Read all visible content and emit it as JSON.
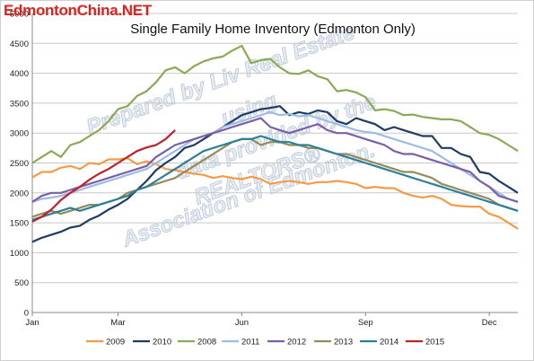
{
  "logo": "EdmontonChina.NET",
  "watermark": {
    "lines": [
      "Prepared by Liv Real Estate",
      "using",
      "data provided by the",
      "REALTORS®",
      "Association of Edmonton."
    ]
  },
  "chart_data": {
    "type": "line",
    "title": "Single Family Home Inventory (Edmonton Only)",
    "xlabel": "",
    "ylabel": "",
    "ylim": [
      0,
      5000
    ],
    "yticks": [
      0,
      500,
      1000,
      1500,
      2000,
      2500,
      3000,
      3500,
      4000,
      4500,
      5000
    ],
    "x_ticks": [
      {
        "week": 0,
        "label": "Jan"
      },
      {
        "week": 9,
        "label": "Mar"
      },
      {
        "week": 22,
        "label": "Jun"
      },
      {
        "week": 35,
        "label": "Sep"
      },
      {
        "week": 48,
        "label": "Dec"
      }
    ],
    "x_range": [
      0,
      51
    ],
    "grid": "horizontal",
    "legend_position": "bottom",
    "series": [
      {
        "name": "2009",
        "color": "#f59b46",
        "values": [
          2260,
          2350,
          2350,
          2420,
          2450,
          2400,
          2500,
          2480,
          2560,
          2560,
          2580,
          2480,
          2530,
          2480,
          2400,
          2380,
          2350,
          2320,
          2300,
          2250,
          2280,
          2250,
          2230,
          2270,
          2230,
          2150,
          2180,
          2200,
          2180,
          2150,
          2180,
          2180,
          2200,
          2180,
          2150,
          2080,
          2100,
          2080,
          2080,
          2000,
          1950,
          1920,
          1950,
          1900,
          1800,
          1780,
          1770,
          1770,
          1650,
          1600,
          1500,
          1400
        ]
      },
      {
        "name": "2010",
        "color": "#1f3b63",
        "values": [
          1180,
          1250,
          1300,
          1350,
          1420,
          1450,
          1550,
          1620,
          1720,
          1800,
          1900,
          2050,
          2200,
          2380,
          2500,
          2600,
          2750,
          2800,
          2900,
          3000,
          3100,
          3200,
          3300,
          3350,
          3400,
          3420,
          3450,
          3300,
          3350,
          3320,
          3380,
          3350,
          3200,
          3150,
          3250,
          3200,
          3150,
          3050,
          3100,
          3050,
          3000,
          2950,
          2950,
          2750,
          2750,
          2650,
          2600,
          2350,
          2320,
          2200,
          2100,
          2000
        ]
      },
      {
        "name": "2008",
        "color": "#8aaa55",
        "values": [
          2500,
          2600,
          2700,
          2600,
          2800,
          2850,
          2950,
          3050,
          3200,
          3400,
          3450,
          3620,
          3700,
          3850,
          4050,
          4100,
          4000,
          4120,
          4200,
          4250,
          4280,
          4380,
          4460,
          4170,
          4220,
          4240,
          4100,
          4000,
          3990,
          4050,
          3950,
          3900,
          3700,
          3720,
          3680,
          3600,
          3380,
          3400,
          3370,
          3300,
          3310,
          3270,
          3250,
          3230,
          3230,
          3200,
          3100,
          3000,
          2970,
          2900,
          2800,
          2700
        ]
      },
      {
        "name": "2011",
        "color": "#9bbde2",
        "values": [
          1850,
          1900,
          1920,
          1950,
          2000,
          2050,
          2100,
          2150,
          2200,
          2250,
          2300,
          2350,
          2400,
          2500,
          2600,
          2700,
          2800,
          2900,
          2950,
          3000,
          3100,
          3150,
          3200,
          3250,
          3300,
          3350,
          3300,
          3320,
          3280,
          3300,
          3250,
          3200,
          3150,
          3100,
          3050,
          3020,
          3000,
          2950,
          2900,
          2850,
          2800,
          2750,
          2700,
          2600,
          2500,
          2400,
          2300,
          2200,
          2100,
          2000,
          1900,
          1850
        ]
      },
      {
        "name": "2012",
        "color": "#7b5ea8",
        "values": [
          1850,
          1950,
          2000,
          2000,
          2050,
          2100,
          2150,
          2200,
          2250,
          2300,
          2350,
          2400,
          2450,
          2600,
          2700,
          2800,
          2850,
          2900,
          2950,
          3000,
          3050,
          3100,
          3150,
          3200,
          3250,
          3100,
          3050,
          3000,
          3050,
          3100,
          3150,
          3050,
          3000,
          3000,
          2950,
          2900,
          2850,
          2800,
          2700,
          2650,
          2650,
          2600,
          2550,
          2500,
          2450,
          2400,
          2350,
          2200,
          2100,
          1950,
          1900,
          1850
        ]
      },
      {
        "name": "2013",
        "color": "#958a58",
        "values": [
          1600,
          1650,
          1700,
          1650,
          1700,
          1750,
          1800,
          1800,
          1850,
          1900,
          2000,
          2050,
          2100,
          2150,
          2200,
          2250,
          2350,
          2450,
          2550,
          2650,
          2750,
          2850,
          2900,
          2900,
          2800,
          2850,
          2850,
          2800,
          2800,
          2750,
          2750,
          2700,
          2650,
          2650,
          2600,
          2550,
          2500,
          2450,
          2400,
          2350,
          2350,
          2300,
          2250,
          2150,
          2100,
          2050,
          2000,
          1950,
          1900,
          1800,
          1750,
          1700
        ]
      },
      {
        "name": "2014",
        "color": "#2b8099",
        "values": [
          1550,
          1600,
          1650,
          1700,
          1750,
          1700,
          1750,
          1800,
          1850,
          1900,
          1950,
          2050,
          2100,
          2200,
          2300,
          2400,
          2500,
          2600,
          2700,
          2750,
          2800,
          2850,
          2900,
          2900,
          2950,
          2900,
          2850,
          2850,
          2800,
          2800,
          2750,
          2700,
          2650,
          2600,
          2550,
          2500,
          2450,
          2400,
          2350,
          2300,
          2250,
          2200,
          2150,
          2100,
          2050,
          2000,
          1950,
          1900,
          1850,
          1800,
          1750,
          1700
        ]
      },
      {
        "name": "2015",
        "color": "#c0202a",
        "values": [
          1520,
          1600,
          1720,
          1880,
          2000,
          2100,
          2220,
          2320,
          2400,
          2500,
          2600,
          2700,
          2760,
          2800,
          2900,
          3050
        ]
      }
    ]
  }
}
